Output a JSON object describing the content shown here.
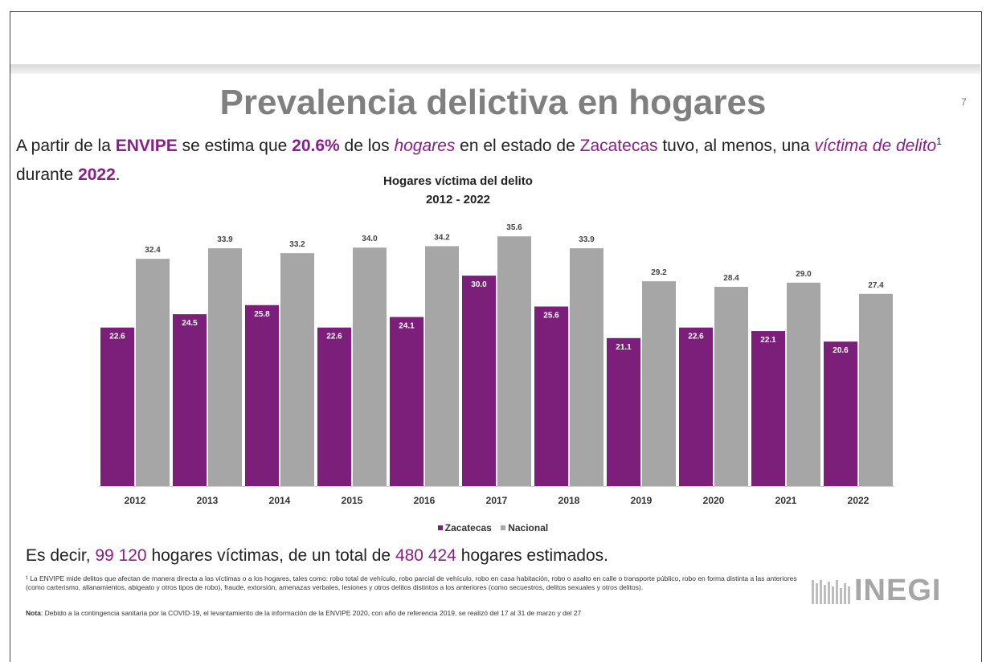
{
  "slide": {
    "title": "Prevalencia delictiva en hogares",
    "page_number": "7",
    "intro": {
      "p1": "A partir de la ",
      "envipe": "ENVIPE",
      "p2": " se estima que ",
      "pct": "20.6%",
      "p3": " de los ",
      "hogares": "hogares",
      "p4": " en el estado de ",
      "estado": "Zacatecas",
      "p5": " tuvo, al menos, una ",
      "victima": "víctima de delito",
      "sup": "1",
      "p6": " durante ",
      "year": "2022",
      "p7": "."
    },
    "summary": {
      "p1": "Es decir, ",
      "victimas": "99 120",
      "p2": " hogares víctimas, de un total de ",
      "total": "480 424",
      "p3": " hogares estimados."
    },
    "footnote": "¹ La ENVIPE mide delitos que afectan de manera directa a las víctimas o a los hogares, tales como: robo total de vehículo, robo parcial de vehículo, robo en casa habitación, robo o asalto en calle o transporte público, robo en forma distinta a las anteriores (como carterismo, allanamientos, abigeato y otros tipos de robo), fraude, extorsión, amenazas verbales, lesiones y otros delitos distintos a los anteriores (como secuestros, delitos sexuales y otros delitos).",
    "note_label": "Nota",
    "note_text": ": Debido a la contingencia sanitaria por la COVID-19, el levantamiento de la información de la ENVIPE 2020, con año de referencia 2019, se realizó del 17 al 31 de marzo y del 27",
    "logo_text": "INEGI"
  },
  "colors": {
    "zacatecas": "#7b1f7b",
    "nacional": "#a6a6a6",
    "accent": "#8a1e8a"
  },
  "chart_data": {
    "type": "bar",
    "title": "Hogares víctima del delito",
    "subtitle": "2012 - 2022",
    "categories": [
      "2012",
      "2013",
      "2014",
      "2015",
      "2016",
      "2017",
      "2018",
      "2019",
      "2020",
      "2021",
      "2022"
    ],
    "series": [
      {
        "name": "Zacatecas",
        "values": [
          22.6,
          24.5,
          25.8,
          22.6,
          24.1,
          30.0,
          25.6,
          21.1,
          22.6,
          22.1,
          20.6
        ],
        "labels": [
          "22.6",
          "24.5",
          "25.8",
          "22.6",
          "24.1",
          "30.0",
          "25.6",
          "21.1",
          "22.6",
          "22.1",
          "20.6"
        ]
      },
      {
        "name": "Nacional",
        "values": [
          32.4,
          33.9,
          33.2,
          34.0,
          34.2,
          35.6,
          33.9,
          29.2,
          28.4,
          29.0,
          27.4
        ],
        "labels": [
          "32.4",
          "33.9",
          "33.2",
          "34.0",
          "34.2",
          "35.6",
          "33.9",
          "29.2",
          "28.4",
          "29.0",
          "27.4"
        ]
      }
    ],
    "ylim": [
      0,
      40
    ],
    "grid": false,
    "legend": "bottom-center"
  }
}
